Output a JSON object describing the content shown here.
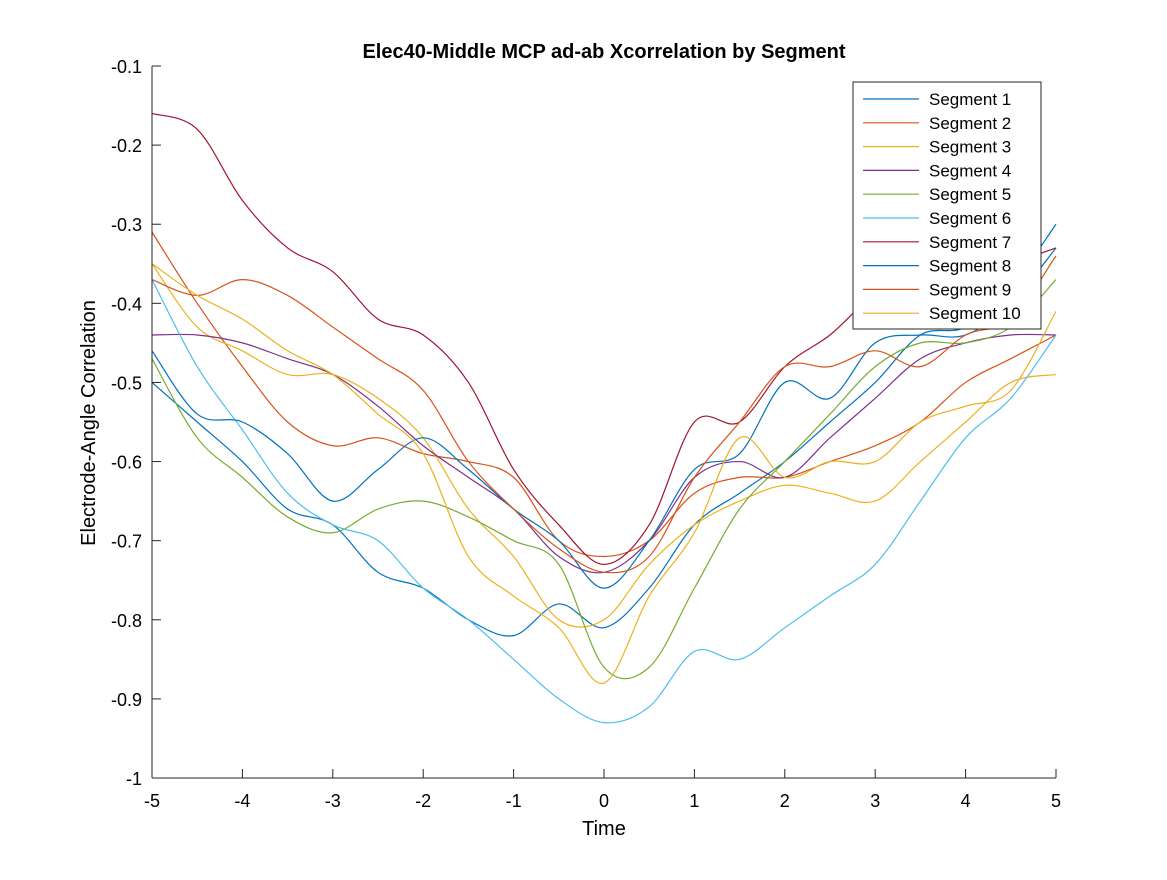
{
  "chart_data": {
    "type": "line",
    "title": "Elec40-Middle MCP ad-ab Xcorrelation by Segment",
    "xlabel": "Time",
    "ylabel": "Electrode-Angle Correlation",
    "xlim": [
      -5,
      5
    ],
    "ylim": [
      -1,
      -0.1
    ],
    "xticks": [
      -5,
      -4,
      -3,
      -2,
      -1,
      0,
      1,
      2,
      3,
      4,
      5
    ],
    "xtick_labels": [
      "-5",
      "-4",
      "-3",
      "-2",
      "-1",
      "0",
      "1",
      "2",
      "3",
      "4",
      "5"
    ],
    "yticks": [
      -1,
      -0.9,
      -0.8,
      -0.7,
      -0.6,
      -0.5,
      -0.4,
      -0.3,
      -0.2,
      -0.1
    ],
    "ytick_labels": [
      "-1",
      "-0.9",
      "-0.8",
      "-0.7",
      "-0.6",
      "-0.5",
      "-0.4",
      "-0.3",
      "-0.2",
      "-0.1"
    ],
    "grid": false,
    "legend_position": "top-right",
    "x": [
      -5,
      -4.5,
      -4,
      -3.5,
      -3,
      -2.5,
      -2,
      -1.5,
      -1,
      -0.5,
      0,
      0.5,
      1,
      1.5,
      2,
      2.5,
      3,
      3.5,
      4,
      4.5,
      5
    ],
    "series": [
      {
        "name": "Segment 1",
        "color": "#0072BD",
        "values": [
          -0.5,
          -0.55,
          -0.6,
          -0.66,
          -0.68,
          -0.74,
          -0.76,
          -0.8,
          -0.82,
          -0.78,
          -0.81,
          -0.76,
          -0.68,
          -0.64,
          -0.6,
          -0.55,
          -0.5,
          -0.44,
          -0.43,
          -0.38,
          -0.3
        ]
      },
      {
        "name": "Segment 2",
        "color": "#D95319",
        "values": [
          -0.31,
          -0.4,
          -0.48,
          -0.55,
          -0.58,
          -0.57,
          -0.59,
          -0.6,
          -0.62,
          -0.7,
          -0.72,
          -0.7,
          -0.64,
          -0.62,
          -0.62,
          -0.6,
          -0.58,
          -0.55,
          -0.5,
          -0.47,
          -0.44
        ]
      },
      {
        "name": "Segment 3",
        "color": "#EDB120",
        "values": [
          -0.35,
          -0.43,
          -0.46,
          -0.49,
          -0.49,
          -0.52,
          -0.57,
          -0.66,
          -0.72,
          -0.8,
          -0.8,
          -0.73,
          -0.68,
          -0.65,
          -0.63,
          -0.64,
          -0.65,
          -0.6,
          -0.55,
          -0.5,
          -0.49
        ]
      },
      {
        "name": "Segment 4",
        "color": "#7E2F8E",
        "values": [
          -0.44,
          -0.44,
          -0.45,
          -0.47,
          -0.49,
          -0.53,
          -0.58,
          -0.62,
          -0.66,
          -0.72,
          -0.74,
          -0.7,
          -0.62,
          -0.6,
          -0.62,
          -0.57,
          -0.52,
          -0.47,
          -0.45,
          -0.44,
          -0.44
        ]
      },
      {
        "name": "Segment 5",
        "color": "#77AC30",
        "values": [
          -0.47,
          -0.57,
          -0.62,
          -0.67,
          -0.69,
          -0.66,
          -0.65,
          -0.67,
          -0.7,
          -0.73,
          -0.86,
          -0.86,
          -0.76,
          -0.66,
          -0.6,
          -0.54,
          -0.48,
          -0.45,
          -0.45,
          -0.43,
          -0.37
        ]
      },
      {
        "name": "Segment 6",
        "color": "#4DBEEE",
        "values": [
          -0.37,
          -0.48,
          -0.56,
          -0.64,
          -0.68,
          -0.7,
          -0.76,
          -0.8,
          -0.85,
          -0.9,
          -0.93,
          -0.91,
          -0.84,
          -0.85,
          -0.81,
          -0.77,
          -0.73,
          -0.65,
          -0.57,
          -0.52,
          -0.44
        ]
      },
      {
        "name": "Segment 7",
        "color": "#A2142F",
        "values": [
          -0.16,
          -0.18,
          -0.27,
          -0.33,
          -0.36,
          -0.42,
          -0.44,
          -0.5,
          -0.61,
          -0.68,
          -0.73,
          -0.68,
          -0.55,
          -0.55,
          -0.48,
          -0.44,
          -0.39,
          -0.38,
          -0.37,
          -0.35,
          -0.33
        ]
      },
      {
        "name": "Segment 8",
        "color": "#0072BD",
        "values": [
          -0.46,
          -0.54,
          -0.55,
          -0.59,
          -0.65,
          -0.61,
          -0.57,
          -0.61,
          -0.66,
          -0.7,
          -0.76,
          -0.7,
          -0.61,
          -0.59,
          -0.5,
          -0.52,
          -0.45,
          -0.44,
          -0.44,
          -0.4,
          -0.33
        ]
      },
      {
        "name": "Segment 9",
        "color": "#D95319",
        "values": [
          -0.37,
          -0.39,
          -0.37,
          -0.39,
          -0.43,
          -0.47,
          -0.51,
          -0.6,
          -0.66,
          -0.71,
          -0.74,
          -0.72,
          -0.62,
          -0.55,
          -0.48,
          -0.48,
          -0.46,
          -0.48,
          -0.44,
          -0.42,
          -0.34
        ]
      },
      {
        "name": "Segment 10",
        "color": "#EDB120",
        "values": [
          -0.35,
          -0.39,
          -0.42,
          -0.46,
          -0.49,
          -0.54,
          -0.59,
          -0.72,
          -0.77,
          -0.81,
          -0.88,
          -0.77,
          -0.69,
          -0.57,
          -0.62,
          -0.6,
          -0.6,
          -0.55,
          -0.53,
          -0.51,
          -0.41
        ]
      }
    ]
  }
}
